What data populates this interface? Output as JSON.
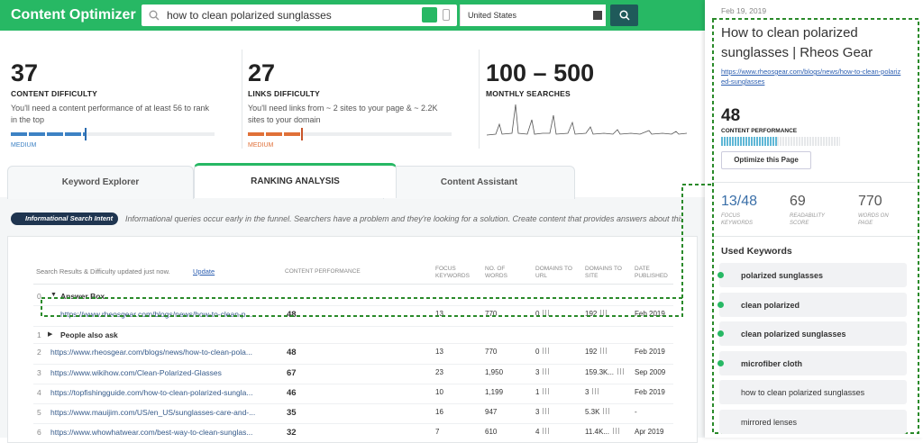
{
  "header": {
    "logo": "Content Optimizer",
    "query": "how to clean polarized sunglasses",
    "country": "United States"
  },
  "metrics": [
    {
      "value": "37",
      "label": "CONTENT DIFFICULTY",
      "note": "You'll need a content performance of at least 56 to rank in the top",
      "level": "MEDIUM"
    },
    {
      "value": "27",
      "label": "LINKS DIFFICULTY",
      "note": "You'll need links from ~ 2 sites to your page & ~ 2.2K sites to your domain",
      "level": "MEDIUM"
    },
    {
      "value": "100 – 500",
      "label": "MONTHLY SEARCHES"
    }
  ],
  "tabs": [
    "Keyword Explorer",
    "RANKING ANALYSIS",
    "Content Assistant"
  ],
  "intent": {
    "badge": "Informational Search Intent",
    "text": "Informational queries occur early in the funnel. Searchers have a problem and they're looking for a solution. Create content that provides answers about this topi"
  },
  "table": {
    "status": "Search Results & Difficulty updated just now.",
    "update": "Update",
    "columns": [
      "CONTENT PERFORMANCE",
      "FOCUS KEYWORDS",
      "NO. OF WORDS",
      "DOMAINS TO URL",
      "DOMAINS TO SITE",
      "DATE PUBLISHED"
    ],
    "rows": [
      {
        "index": "0",
        "label": "Answer Box"
      },
      {
        "url": "https://www.rheosgear.com/blogs/news/how-to-clean-p...",
        "cells": [
          "48",
          "13",
          "770",
          "0",
          "192",
          "Feb 2019"
        ]
      },
      {
        "index": "1",
        "label": "People also ask"
      },
      {
        "index": "2",
        "url": "https://www.rheosgear.com/blogs/news/how-to-clean-pola...",
        "cells": [
          "48",
          "13",
          "770",
          "0",
          "192",
          "Feb 2019"
        ]
      },
      {
        "index": "3",
        "url": "https://www.wikihow.com/Clean-Polarized-Glasses",
        "cells": [
          "67",
          "23",
          "1,950",
          "3",
          "159.3K...",
          "Sep 2009"
        ]
      },
      {
        "index": "4",
        "url": "https://topfishingguide.com/how-to-clean-polarized-sungla...",
        "cells": [
          "46",
          "10",
          "1,199",
          "1",
          "3",
          "Feb 2019"
        ]
      },
      {
        "index": "5",
        "url": "https://www.mauijim.com/US/en_US/sunglasses-care-and-...",
        "cells": [
          "35",
          "16",
          "947",
          "3",
          "5.3K",
          "-"
        ]
      },
      {
        "index": "6",
        "url": "https://www.whowhatwear.com/best-way-to-clean-sunglas...",
        "cells": [
          "32",
          "7",
          "610",
          "4",
          "11.4K...",
          "Apr 2019"
        ]
      }
    ]
  },
  "panel": {
    "date": "Feb 19, 2019",
    "title": "How to clean polarized sunglasses | Rheos Gear",
    "url": "https://www.rheosgear.com/blogs/news/how-to-clean-polarized-sunglasses",
    "score": "48",
    "score_label": "CONTENT PERFORMANCE",
    "button": "Optimize this Page",
    "stats": [
      {
        "value": "13/48",
        "label": "FOCUS KEYWORDS"
      },
      {
        "value": "69",
        "label": "READABILITY SCORE"
      },
      {
        "value": "770",
        "label": "WORDS ON PAGE"
      }
    ],
    "keywords_title": "Used Keywords",
    "keywords": [
      {
        "text": "polarized sunglasses",
        "used": true
      },
      {
        "text": "clean polarized",
        "used": true
      },
      {
        "text": "clean polarized sunglasses",
        "used": true
      },
      {
        "text": "microfiber cloth",
        "used": true
      },
      {
        "text": "how to clean polarized sunglasses",
        "used": false
      },
      {
        "text": "mirrored lenses",
        "used": false
      }
    ]
  }
}
